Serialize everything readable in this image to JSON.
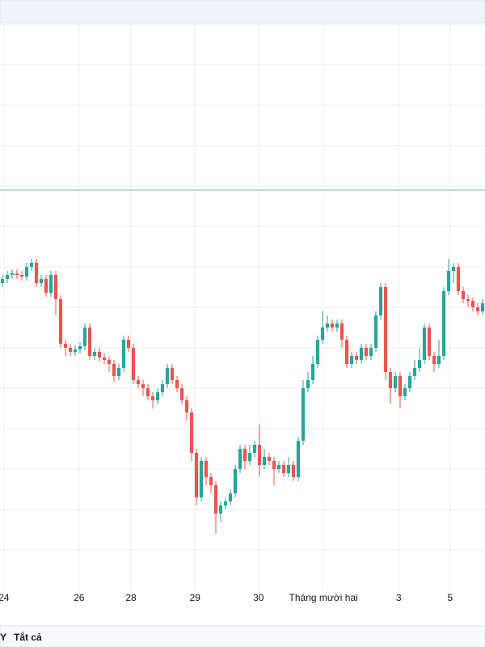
{
  "chart_data": {
    "type": "candlestick",
    "xlim": [
      -0.5,
      99.5
    ],
    "ylim": [
      0,
      700
    ],
    "xticks": [
      {
        "value": 0.3,
        "label": "24"
      },
      {
        "value": 15.8,
        "label": "26"
      },
      {
        "value": 26.5,
        "label": "28"
      },
      {
        "value": 39.7,
        "label": "29"
      },
      {
        "value": 52.8,
        "label": "30"
      },
      {
        "value": 66.2,
        "label": "Tháng mười hai"
      },
      {
        "value": 81.7,
        "label": "3"
      },
      {
        "value": 92.3,
        "label": "5"
      }
    ],
    "y_grid": [
      50,
      100,
      150,
      200,
      250,
      300,
      350,
      400,
      450,
      500,
      550,
      600,
      650,
      700
    ],
    "price_line": 495,
    "price_line_color": "#a8c8e8",
    "up_color": "#26a69a",
    "down_color": "#ef5350",
    "open": [
      380,
      385,
      390,
      392,
      390,
      388,
      400,
      405,
      380,
      385,
      368,
      390,
      360,
      305,
      300,
      295,
      298,
      302,
      325,
      290,
      295,
      288,
      285,
      280,
      265,
      275,
      310,
      300,
      260,
      255,
      250,
      240,
      235,
      245,
      255,
      275,
      260,
      250,
      235,
      220,
      170,
      115,
      160,
      140,
      130,
      95,
      105,
      110,
      120,
      150,
      175,
      160,
      170,
      180,
      155,
      165,
      160,
      150,
      155,
      145,
      155,
      140,
      185,
      250,
      260,
      280,
      310,
      325,
      330,
      325,
      330,
      310,
      280,
      290,
      285,
      300,
      290,
      300,
      340,
      375,
      270,
      250,
      265,
      240,
      250,
      265,
      275,
      285,
      325,
      290,
      280,
      290,
      370,
      395,
      400,
      370,
      360,
      358,
      350,
      345
    ],
    "high": [
      390,
      395,
      397,
      397,
      395,
      405,
      410,
      410,
      390,
      390,
      395,
      395,
      365,
      310,
      305,
      303,
      307,
      330,
      330,
      300,
      300,
      293,
      290,
      285,
      280,
      315,
      315,
      305,
      265,
      260,
      255,
      245,
      250,
      260,
      280,
      280,
      265,
      255,
      240,
      225,
      175,
      165,
      165,
      145,
      135,
      110,
      115,
      125,
      155,
      180,
      180,
      180,
      185,
      205,
      175,
      170,
      165,
      160,
      160,
      165,
      160,
      190,
      260,
      270,
      290,
      315,
      345,
      340,
      335,
      335,
      335,
      315,
      295,
      295,
      305,
      305,
      305,
      345,
      380,
      380,
      275,
      270,
      270,
      255,
      270,
      285,
      300,
      330,
      330,
      295,
      310,
      375,
      410,
      405,
      405,
      375,
      365,
      362,
      355,
      360
    ],
    "low": [
      375,
      380,
      385,
      385,
      383,
      383,
      395,
      375,
      375,
      363,
      363,
      340,
      300,
      290,
      290,
      290,
      293,
      297,
      285,
      285,
      283,
      280,
      270,
      258,
      260,
      270,
      295,
      255,
      250,
      240,
      235,
      225,
      230,
      240,
      250,
      255,
      245,
      230,
      210,
      160,
      105,
      110,
      130,
      120,
      70,
      85,
      100,
      105,
      115,
      145,
      150,
      155,
      165,
      140,
      150,
      155,
      130,
      145,
      140,
      140,
      135,
      135,
      180,
      245,
      255,
      275,
      305,
      320,
      320,
      320,
      300,
      275,
      275,
      280,
      280,
      285,
      285,
      295,
      335,
      260,
      230,
      245,
      225,
      235,
      245,
      260,
      270,
      280,
      285,
      270,
      275,
      285,
      365,
      380,
      365,
      355,
      350,
      345,
      340,
      340
    ],
    "close": [
      385,
      390,
      392,
      390,
      388,
      400,
      405,
      380,
      385,
      368,
      390,
      360,
      305,
      300,
      295,
      298,
      302,
      325,
      290,
      295,
      288,
      285,
      280,
      265,
      275,
      310,
      300,
      260,
      255,
      250,
      240,
      235,
      245,
      255,
      275,
      260,
      250,
      235,
      220,
      170,
      115,
      160,
      140,
      130,
      95,
      105,
      110,
      120,
      150,
      175,
      160,
      170,
      180,
      155,
      165,
      160,
      150,
      155,
      145,
      155,
      140,
      185,
      250,
      260,
      280,
      310,
      325,
      330,
      325,
      330,
      310,
      280,
      290,
      285,
      300,
      290,
      300,
      340,
      375,
      270,
      250,
      265,
      240,
      250,
      265,
      275,
      285,
      325,
      290,
      280,
      290,
      370,
      395,
      400,
      370,
      360,
      358,
      350,
      345,
      355
    ]
  },
  "toolbar": {
    "range": "Y",
    "all": "Tắt cả"
  }
}
